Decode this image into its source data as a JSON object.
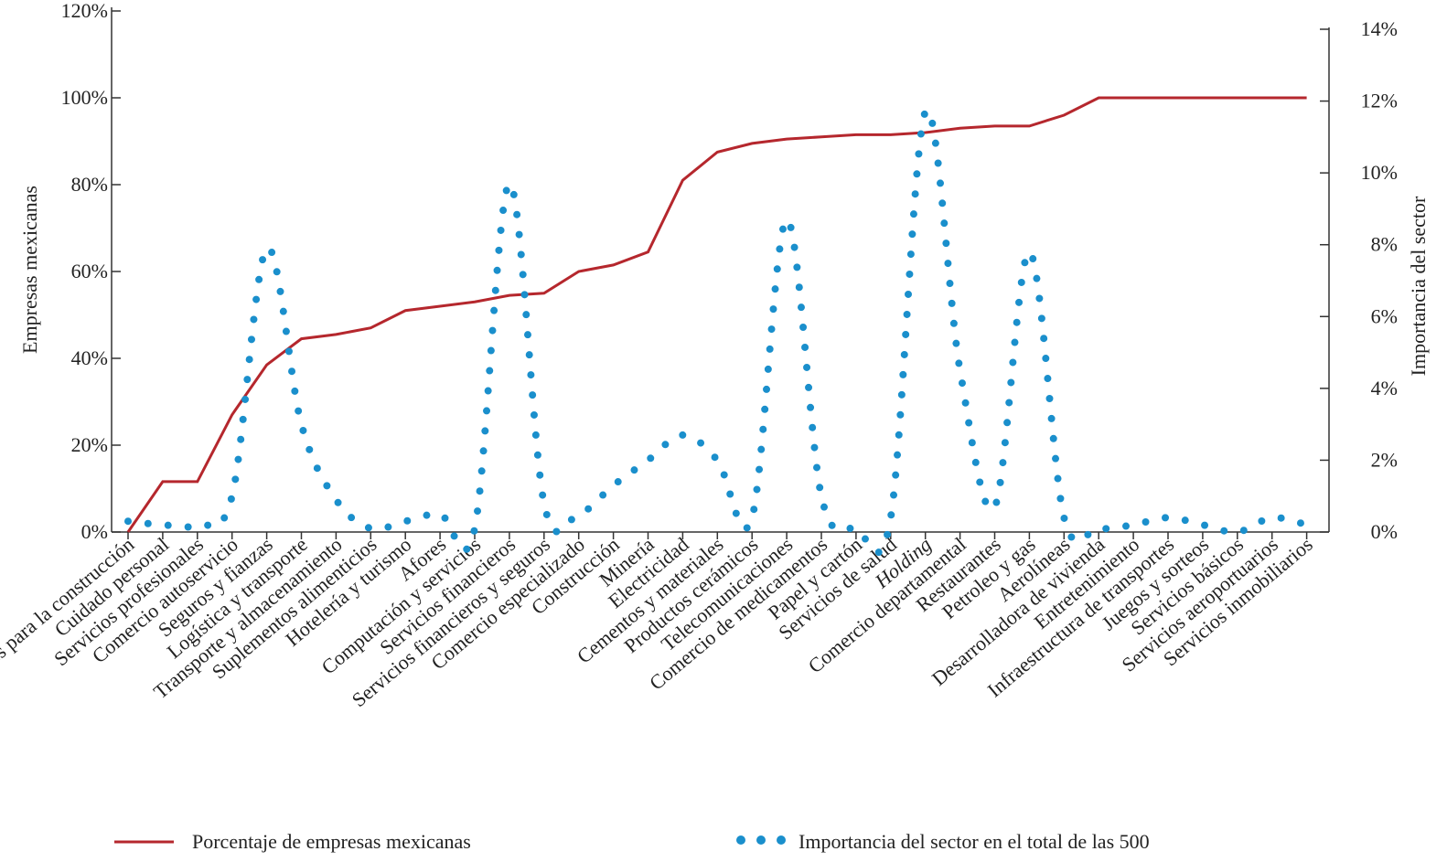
{
  "chart_data": {
    "type": "line",
    "categories": [
      "Materiales para la construcción",
      "Cuidado personal",
      "Servicios profesionales",
      "Comercio autoservicio",
      "Seguros y fianzas",
      "Logística y transporte",
      "Transporte y almacenamiento",
      "Suplementos alimenticios",
      "Hotelería y turismo",
      "Afores",
      "Computación y servicios",
      "Servicios financieros",
      "Servicios financieros y seguros",
      "Comercio especializado",
      "Construcción",
      "Minería",
      "Electricidad",
      "Cementos y materiales",
      "Productos cerámicos",
      "Telecomunicaciones",
      "Comercio de medicamentos",
      "Papel y cartón",
      "Servicios de salud",
      "Holding",
      "Comercio departamental",
      "Restaurantes",
      "Petroleo y gas",
      "Aerolíneas",
      "Desarrolladora de vivienda",
      "Entretenimiento",
      "Infraestructura de transportes",
      "Juegos y sorteos",
      "Servicios básicos",
      "Servicios aeroportuarios",
      "Servicios inmobiliarios"
    ],
    "ylabel": "Empresas mexicanas",
    "y2label": "Importancia del sector",
    "ylim": [
      0,
      120
    ],
    "yticks": [
      {
        "value": 0,
        "label": "0%"
      },
      {
        "value": 20,
        "label": "20%"
      },
      {
        "value": 40,
        "label": "40%"
      },
      {
        "value": 60,
        "label": "60%"
      },
      {
        "value": 80,
        "label": "80%"
      },
      {
        "value": 100,
        "label": "100%"
      },
      {
        "value": 120,
        "label": "120%"
      }
    ],
    "y2lim": [
      0,
      14
    ],
    "y2ticks": [
      {
        "value": 0,
        "label": "0%"
      },
      {
        "value": 2,
        "label": "2%"
      },
      {
        "value": 4,
        "label": "4%"
      },
      {
        "value": 6,
        "label": "6%"
      },
      {
        "value": 8,
        "label": "8%"
      },
      {
        "value": 10,
        "label": "10%"
      },
      {
        "value": 12,
        "label": "12%"
      },
      {
        "value": 14,
        "label": "14%"
      }
    ],
    "series": [
      {
        "name": "Porcentaje de empresas mexicanas",
        "color": "#b5272d",
        "style": "solid",
        "values": [
          0,
          11.6,
          11.6,
          27,
          38.5,
          44.5,
          45.5,
          47,
          51,
          52,
          53,
          54.5,
          55,
          60,
          61.5,
          64.5,
          81,
          87.5,
          89.5,
          90.5,
          91,
          91.5,
          91.5,
          92,
          93,
          93.5,
          93.5,
          96,
          100,
          100,
          100,
          100,
          100,
          100,
          100
        ]
      },
      {
        "name": "Importancia del sector en el total de las 500",
        "color": "#1a8fcc",
        "style": "dotted",
        "axis": "y2",
        "values": [
          0.3,
          0.2,
          0.2,
          1.0,
          7.9,
          3.0,
          0.9,
          0.1,
          0.3,
          0.5,
          0.1,
          9.7,
          0.8,
          0.5,
          1.3,
          2.0,
          2.7,
          2.0,
          0.4,
          8.7,
          1.0,
          0.1,
          0.4,
          11.7,
          4.5,
          0.7,
          7.8,
          0.4,
          0.1,
          0.2,
          0.4,
          0.2,
          0.0,
          0.4,
          0.2
        ]
      }
    ]
  }
}
